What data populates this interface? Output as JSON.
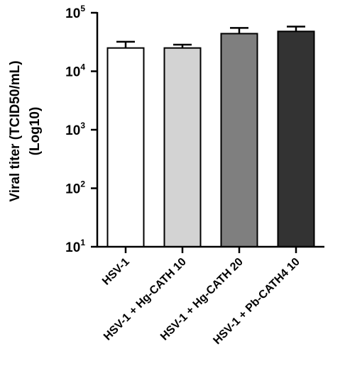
{
  "chart_data": {
    "type": "bar",
    "title": "",
    "ylabel_line1": "Viral titer (TCID50/mL)",
    "ylabel_line2": "(Log10)",
    "xlabel": "",
    "yscale": "log",
    "ylim": [
      10,
      100000
    ],
    "yticks": [
      {
        "base": "10",
        "exp": "1"
      },
      {
        "base": "10",
        "exp": "2"
      },
      {
        "base": "10",
        "exp": "3"
      },
      {
        "base": "10",
        "exp": "4"
      },
      {
        "base": "10",
        "exp": "5"
      }
    ],
    "ytick_values": [
      10,
      100,
      1000,
      10000,
      100000
    ],
    "categories": [
      "HSV-1",
      "HSV-1 + Hg-CATH 10",
      "HSV-1 + Hg-CATH 20",
      "HSV-1 + Pb-CATH4 10"
    ],
    "values": [
      25000,
      25000,
      44000,
      48000
    ],
    "error_upper": [
      32000,
      28500,
      55000,
      58000
    ],
    "bar_colors": [
      "#ffffff",
      "#d3d3d3",
      "#7f7f7f",
      "#333333"
    ],
    "grid": false,
    "legend": "none"
  }
}
